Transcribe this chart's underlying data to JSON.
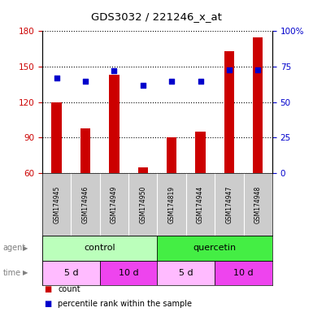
{
  "title": "GDS3032 / 221246_x_at",
  "samples": [
    "GSM174945",
    "GSM174946",
    "GSM174949",
    "GSM174950",
    "GSM174819",
    "GSM174944",
    "GSM174947",
    "GSM174948"
  ],
  "count_values": [
    120,
    98,
    143,
    65,
    90,
    95,
    163,
    175
  ],
  "percentile_values": [
    67,
    65,
    72,
    62,
    65,
    65,
    73,
    73
  ],
  "ylim_left": [
    60,
    180
  ],
  "ylim_right": [
    0,
    100
  ],
  "yticks_left": [
    60,
    90,
    120,
    150,
    180
  ],
  "yticks_right": [
    0,
    25,
    50,
    75,
    100
  ],
  "ytick_labels_left": [
    "60",
    "90",
    "120",
    "150",
    "180"
  ],
  "ytick_labels_right": [
    "0",
    "25",
    "50",
    "75",
    "100%"
  ],
  "bar_color": "#cc0000",
  "dot_color": "#0000cc",
  "agent_groups": [
    {
      "label": "control",
      "start": 0,
      "end": 4,
      "color": "#bbffbb"
    },
    {
      "label": "quercetin",
      "start": 4,
      "end": 8,
      "color": "#44ee44"
    }
  ],
  "time_groups": [
    {
      "label": "5 d",
      "start": 0,
      "end": 2,
      "color": "#ffbbff"
    },
    {
      "label": "10 d",
      "start": 2,
      "end": 4,
      "color": "#ee44ee"
    },
    {
      "label": "5 d",
      "start": 4,
      "end": 6,
      "color": "#ffbbff"
    },
    {
      "label": "10 d",
      "start": 6,
      "end": 8,
      "color": "#ee44ee"
    }
  ],
  "sample_bg_color": "#cccccc",
  "legend_count_color": "#cc0000",
  "legend_dot_color": "#0000cc",
  "bar_width": 0.35,
  "dot_size": 20,
  "label_fontsize": 7,
  "tick_fontsize": 7.5,
  "sample_fontsize": 5.5,
  "group_fontsize": 8
}
